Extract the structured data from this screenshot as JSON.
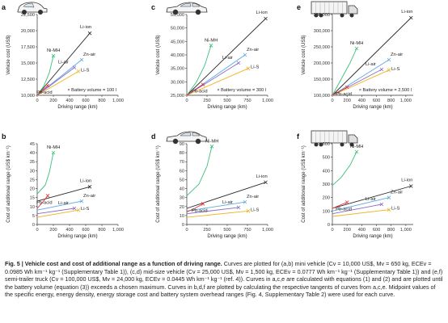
{
  "colors": {
    "Li-ion": "#2b2b2b",
    "Ni-MH": "#3bbf7a",
    "Zn-air": "#5aa9e6",
    "Li-air": "#8a6bc7",
    "Li-S": "#f2b21c",
    "Pb-acid": "#e8323c",
    "axis": "#333333"
  },
  "panels": [
    {
      "letter": "a",
      "vehicle_icon": "car-icon"
    },
    {
      "letter": "c",
      "vehicle_icon": "sedan-icon"
    },
    {
      "letter": "e",
      "vehicle_icon": "truck-icon"
    },
    {
      "letter": "b",
      "vehicle_icon": ""
    },
    {
      "letter": "d",
      "vehicle_icon": "sedan-icon"
    },
    {
      "letter": "f",
      "vehicle_icon": "truck-icon"
    }
  ],
  "chart_data": [
    {
      "panel": "a",
      "type": "line",
      "ylabel": "Vehicle cost (US$)",
      "xlabel": "Driving range (km)",
      "xlim": [
        0,
        1000
      ],
      "ylim": [
        10000,
        22500
      ],
      "xticks": [
        0,
        200,
        400,
        600,
        800,
        1000
      ],
      "yticks": [
        10000,
        12500,
        15000,
        17500,
        20000,
        22500
      ],
      "xtick_labels": [
        "0",
        "200",
        "400",
        "600",
        "800",
        "1,000"
      ],
      "ytick_labels": [
        "10,000",
        "12,500",
        "15,000",
        "17,500",
        "20,000",
        "22,500"
      ],
      "annotation": "× Battery volume = 100 l",
      "series": [
        {
          "name": "Li-ion",
          "x": [
            0,
            650
          ],
          "y": [
            10000,
            19600
          ]
        },
        {
          "name": "Ni-MH",
          "x": [
            0,
            80,
            150,
            200
          ],
          "y": [
            10000,
            11400,
            13500,
            16100
          ]
        },
        {
          "name": "Zn-air",
          "x": [
            0,
            550
          ],
          "y": [
            10000,
            15500
          ]
        },
        {
          "name": "Li-air",
          "x": [
            0,
            460
          ],
          "y": [
            10000,
            14300
          ]
        },
        {
          "name": "Li-S",
          "x": [
            0,
            510
          ],
          "y": [
            10000,
            13700
          ]
        },
        {
          "name": "Pb-acid",
          "x": [
            0,
            130
          ],
          "y": [
            10000,
            11500
          ]
        }
      ]
    },
    {
      "panel": "c",
      "type": "line",
      "ylabel": "Vehicle cost (US$)",
      "xlabel": "Driving range (km)",
      "xlim": [
        0,
        1000
      ],
      "ylim": [
        25000,
        55000
      ],
      "xticks": [
        0,
        250,
        500,
        750,
        1000
      ],
      "yticks": [
        25000,
        30000,
        35000,
        40000,
        45000,
        50000,
        55000
      ],
      "xtick_labels": [
        "0",
        "250",
        "500",
        "750",
        "1,000"
      ],
      "ytick_labels": [
        "25,000",
        "30,000",
        "35,000",
        "40,000",
        "45,000",
        "50,000",
        "55,000"
      ],
      "annotation": "× Battery volume = 300 l",
      "series": [
        {
          "name": "Li-ion",
          "x": [
            0,
            975
          ],
          "y": [
            25000,
            53500
          ]
        },
        {
          "name": "Ni-MH",
          "x": [
            0,
            120,
            220,
            300
          ],
          "y": [
            25000,
            30000,
            36000,
            43500
          ]
        },
        {
          "name": "Zn-air",
          "x": [
            0,
            720
          ],
          "y": [
            25000,
            40000
          ]
        },
        {
          "name": "Li-air",
          "x": [
            0,
            640
          ],
          "y": [
            25000,
            37000
          ]
        },
        {
          "name": "Li-S",
          "x": [
            0,
            760
          ],
          "y": [
            25000,
            35000
          ]
        },
        {
          "name": "Pb-acid",
          "x": [
            0,
            200
          ],
          "y": [
            25000,
            29000
          ]
        }
      ]
    },
    {
      "panel": "e",
      "type": "line",
      "ylabel": "Vehicle cost (US$)",
      "xlabel": "Driving range (km)",
      "xlim": [
        0,
        1100
      ],
      "ylim": [
        100000,
        350000
      ],
      "xticks": [
        0,
        200,
        400,
        600,
        800,
        1000
      ],
      "yticks": [
        100000,
        150000,
        200000,
        250000,
        300000,
        350000
      ],
      "xtick_labels": [
        "0",
        "200",
        "400",
        "600",
        "800",
        "1,000"
      ],
      "ytick_labels": [
        "100,000",
        "150,000",
        "200,000",
        "250,000",
        "300,000",
        "350,000"
      ],
      "annotation": "× Battery volume = 2,500 l",
      "series": [
        {
          "name": "Li-ion",
          "x": [
            0,
            1070
          ],
          "y": [
            100000,
            340000
          ]
        },
        {
          "name": "Ni-MH",
          "x": [
            0,
            120,
            240,
            330
          ],
          "y": [
            100000,
            150000,
            200000,
            245000
          ]
        },
        {
          "name": "Zn-air",
          "x": [
            0,
            770
          ],
          "y": [
            100000,
            210000
          ]
        },
        {
          "name": "Li-air",
          "x": [
            0,
            670
          ],
          "y": [
            100000,
            180000
          ]
        },
        {
          "name": "Li-S",
          "x": [
            0,
            770
          ],
          "y": [
            100000,
            178000
          ]
        },
        {
          "name": "Pb-acid",
          "x": [
            0,
            200
          ],
          "y": [
            100000,
            125000
          ]
        }
      ]
    },
    {
      "panel": "b",
      "type": "line",
      "ylabel": "Cost of additional range (US$ km⁻¹)",
      "xlabel": "Driving range (km)",
      "xlim": [
        0,
        1000
      ],
      "ylim": [
        0,
        45
      ],
      "xticks": [
        0,
        200,
        400,
        600,
        800,
        1000
      ],
      "yticks": [
        0,
        5,
        10,
        15,
        20,
        25,
        30,
        35,
        40,
        45
      ],
      "xtick_labels": [
        "0",
        "200",
        "400",
        "600",
        "800",
        "1,000"
      ],
      "ytick_labels": [
        "0",
        "5",
        "10",
        "15",
        "20",
        "25",
        "30",
        "35",
        "40",
        "45"
      ],
      "annotation": "",
      "series": [
        {
          "name": "Li-ion",
          "x": [
            0,
            650
          ],
          "y": [
            13,
            21
          ]
        },
        {
          "name": "Ni-MH",
          "x": [
            0,
            100,
            150,
            200
          ],
          "y": [
            17,
            22,
            29,
            40
          ]
        },
        {
          "name": "Zn-air",
          "x": [
            0,
            550
          ],
          "y": [
            8,
            13
          ]
        },
        {
          "name": "Li-air",
          "x": [
            0,
            460
          ],
          "y": [
            6,
            9
          ]
        },
        {
          "name": "Li-S",
          "x": [
            0,
            510
          ],
          "y": [
            4,
            8
          ]
        },
        {
          "name": "Pb-acid",
          "x": [
            0,
            60,
            130
          ],
          "y": [
            9,
            12,
            16
          ]
        }
      ]
    },
    {
      "panel": "d",
      "type": "line",
      "ylabel": "Cost of additional range (US$ km⁻¹)",
      "xlabel": "Driving range (km)",
      "xlim": [
        0,
        1000
      ],
      "ylim": [
        0,
        90
      ],
      "xticks": [
        0,
        250,
        500,
        750,
        1000
      ],
      "yticks": [
        0,
        10,
        20,
        30,
        40,
        50,
        60,
        70,
        80,
        90
      ],
      "xtick_labels": [
        "0",
        "250",
        "500",
        "750",
        "1,000"
      ],
      "ytick_labels": [
        "0",
        "10",
        "20",
        "30",
        "40",
        "50",
        "60",
        "70",
        "80",
        "90"
      ],
      "annotation": "",
      "series": [
        {
          "name": "Li-ion",
          "x": [
            0,
            975
          ],
          "y": [
            18,
            47
          ]
        },
        {
          "name": "Ni-MH",
          "x": [
            0,
            150,
            250,
            310
          ],
          "y": [
            32,
            45,
            65,
            87
          ]
        },
        {
          "name": "Zn-air",
          "x": [
            0,
            720
          ],
          "y": [
            15,
            25
          ]
        },
        {
          "name": "Li-air",
          "x": [
            0,
            640
          ],
          "y": [
            12,
            19
          ]
        },
        {
          "name": "Li-S",
          "x": [
            0,
            760
          ],
          "y": [
            8,
            15
          ]
        },
        {
          "name": "Pb-acid",
          "x": [
            0,
            100,
            200
          ],
          "y": [
            14,
            18,
            23
          ]
        }
      ]
    },
    {
      "panel": "f",
      "type": "line",
      "ylabel": "Cost of additional range (US$ km⁻¹)",
      "xlabel": "Driving range (km)",
      "xlim": [
        0,
        1100
      ],
      "ylim": [
        0,
        600
      ],
      "xticks": [
        0,
        200,
        400,
        600,
        800,
        1000
      ],
      "yticks": [
        0,
        100,
        200,
        300,
        400,
        500,
        600
      ],
      "xtick_labels": [
        "0",
        "200",
        "400",
        "600",
        "800",
        "1,000"
      ],
      "ytick_labels": [
        "0",
        "100",
        "200",
        "300",
        "400",
        "500",
        "600"
      ],
      "annotation": "",
      "series": [
        {
          "name": "Li-ion",
          "x": [
            0,
            1070
          ],
          "y": [
            120,
            285
          ]
        },
        {
          "name": "Ni-MH",
          "x": [
            0,
            120,
            240,
            330
          ],
          "y": [
            290,
            350,
            440,
            540
          ]
        },
        {
          "name": "Zn-air",
          "x": [
            0,
            770
          ],
          "y": [
            100,
            200
          ]
        },
        {
          "name": "Li-air",
          "x": [
            0,
            670
          ],
          "y": [
            80,
            150
          ]
        },
        {
          "name": "Li-S",
          "x": [
            0,
            770
          ],
          "y": [
            60,
            110
          ]
        },
        {
          "name": "Pb-acid",
          "x": [
            0,
            200
          ],
          "y": [
            120,
            165
          ]
        }
      ]
    }
  ],
  "caption": {
    "title": "Fig. 5 | Vehicle cost and cost of additional range as a function of driving range.",
    "body": "Curves are plotted for (a,b) mini vehicle (Cv = 10,000 US$, Mv = 650 kg, ECEv = 0.0985 Wh km⁻¹ kg⁻¹ (Supplementary Table 1)), (c,d) mid-size vehicle (Cv = 25,000 US$, Mv = 1,500 kg, ECEv = 0.0777 Wh km⁻¹ kg⁻¹ (Supplementary Table 1)) and (e,f) semi-trailer truck (Cv = 100,000 US$, Mv = 24,000 kg, ECEv = 0.0445 Wh km⁻¹ kg⁻¹ (ref. 4)). Curves in a,c,e are calculated with equations (1) and (2) and are plotted until the battery volume (equation (3)) exceeds a chosen maximum. Curves in b,d,f are plotted by calculating the respective tangents of curves from a,c,e. Midpoint values of the specific energy, energy density, energy storage cost and battery system overhead ranges (Fig. 4, Supplementary Table 2) were used for each curve."
  }
}
